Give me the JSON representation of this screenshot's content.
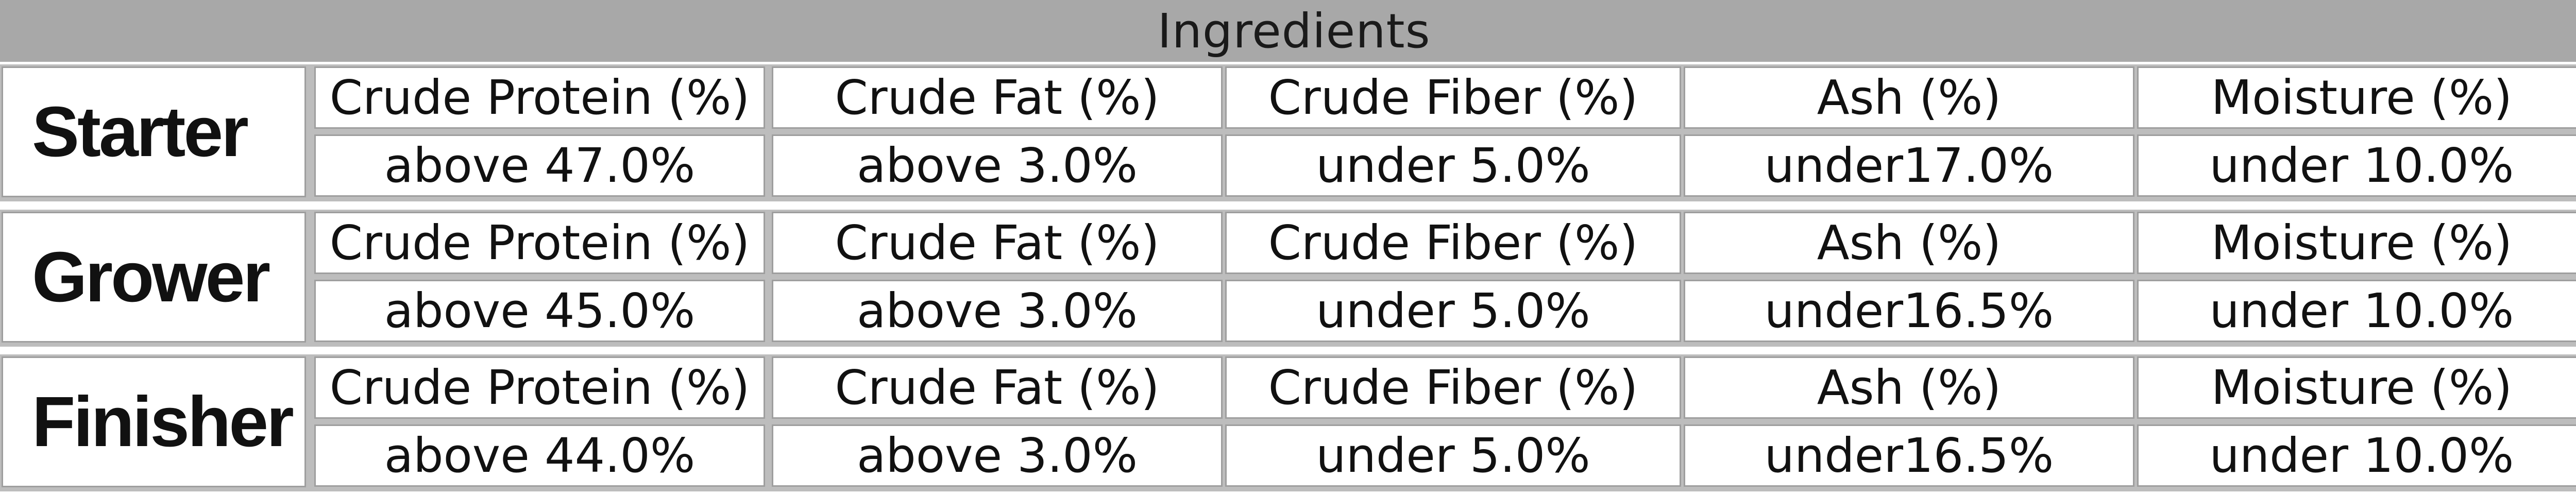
{
  "header": {
    "title": "Ingredients"
  },
  "columns": [
    "Crude Protein (%)",
    "Crude Fat (%)",
    "Crude Fiber (%)",
    "Ash (%)",
    "Moisture (%)"
  ],
  "rows": [
    {
      "stage": "Starter",
      "values": [
        "above 47.0%",
        "above 3.0%",
        "under 5.0%",
        "under17.0%",
        "under 10.0%"
      ]
    },
    {
      "stage": "Grower",
      "values": [
        "above 45.0%",
        "above 3.0%",
        "under 5.0%",
        "under16.5%",
        "under 10.0%"
      ]
    },
    {
      "stage": "Finisher",
      "values": [
        "above 44.0%",
        "above 3.0%",
        "under 5.0%",
        "under16.5%",
        "under 10.0%"
      ]
    }
  ],
  "colors": {
    "header_bg": "#a8a8a8",
    "section_bg": "#bdbdbd",
    "cell_bg": "#ffffff",
    "cell_border": "#9e9e9e",
    "text": "#111111"
  }
}
